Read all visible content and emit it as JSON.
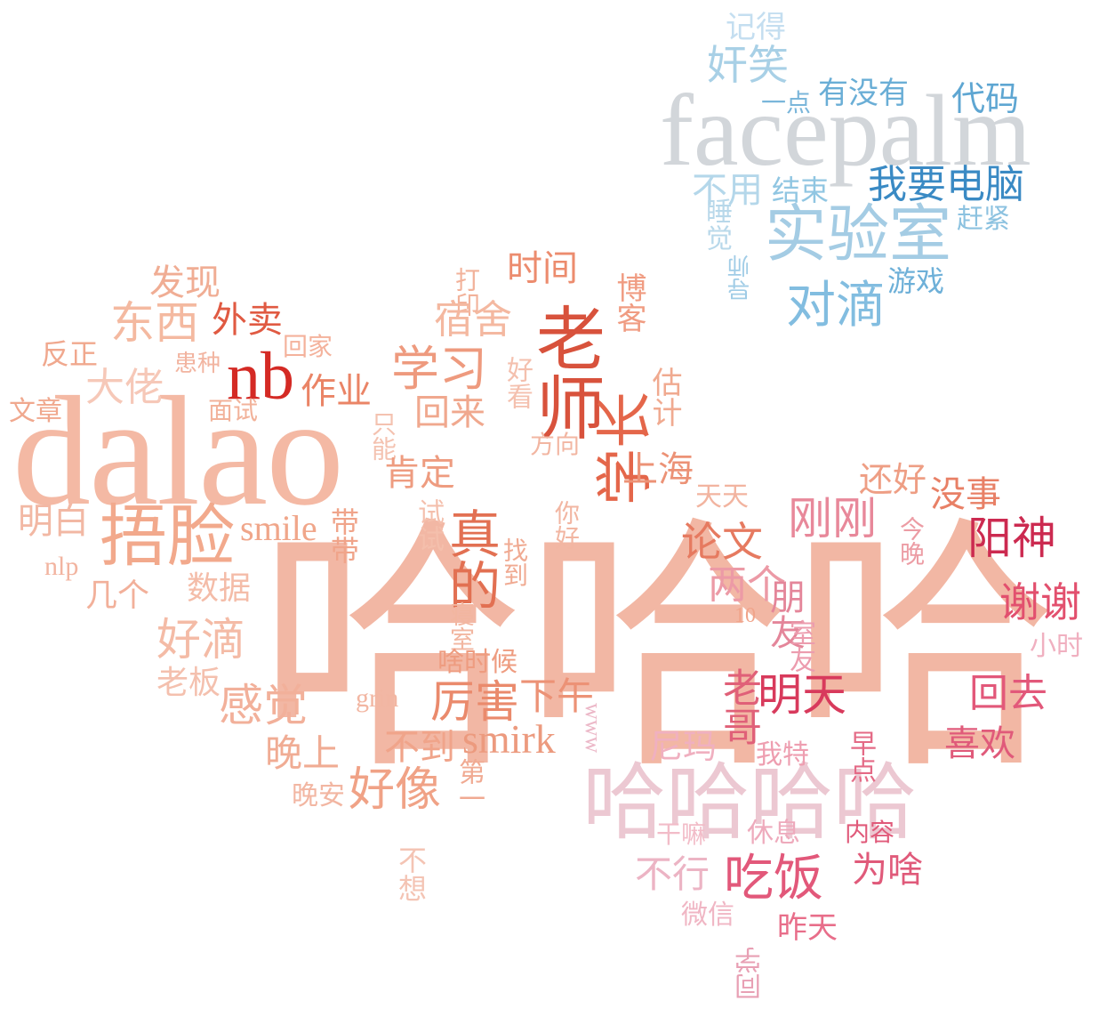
{
  "word_cloud": {
    "words": [
      {
        "text": "哈哈哈",
        "color": "#f2b7a4"
      },
      {
        "text": "dalao",
        "color": "#f4b9a4"
      },
      {
        "text": "facepalm",
        "color": "#d2d6da"
      },
      {
        "text": "哈哈哈哈",
        "color": "#ecc8d2"
      },
      {
        "text": "捂脸",
        "color": "#f2a98c"
      },
      {
        "text": "老师",
        "color": "#d8523c"
      },
      {
        "text": "nb",
        "color": "#d42a24"
      },
      {
        "text": "实验室",
        "color": "#a4cce4"
      },
      {
        "text": "学长",
        "color": "#e4664a"
      },
      {
        "text": "真的",
        "color": "#e27052"
      },
      {
        "text": "学习",
        "color": "#ee9a7e"
      },
      {
        "text": "对滴",
        "color": "#82bde0"
      },
      {
        "text": "奸笑",
        "color": "#a8d0e6"
      },
      {
        "text": "我要电脑",
        "color": "#3a8ac4"
      },
      {
        "text": "不用",
        "color": "#b4d7ea"
      },
      {
        "text": "结束",
        "color": "#90c6e2"
      },
      {
        "text": "有没有",
        "color": "#6aaed6"
      },
      {
        "text": "代码",
        "color": "#5ea6d2"
      },
      {
        "text": "一点",
        "color": "#7ab6da"
      },
      {
        "text": "记得",
        "color": "#c4def0"
      },
      {
        "text": "睡觉",
        "color": "#b8d8ea"
      },
      {
        "text": "赶紧",
        "color": "#8cc2e0"
      },
      {
        "text": "游戏",
        "color": "#6eb0d8"
      },
      {
        "text": "导师",
        "color": "#a0cce6"
      },
      {
        "text": "东西",
        "color": "#f4b9a0"
      },
      {
        "text": "发现",
        "color": "#f0ad94"
      },
      {
        "text": "外卖",
        "color": "#e05a42"
      },
      {
        "text": "时间",
        "color": "#ec8c6e"
      },
      {
        "text": "打印",
        "color": "#f2b29a"
      },
      {
        "text": "博客",
        "color": "#f09c82"
      },
      {
        "text": "宿舍",
        "color": "#f4b8a0"
      },
      {
        "text": "大佬",
        "color": "#f6c8b8"
      },
      {
        "text": "作业",
        "color": "#ea8466"
      },
      {
        "text": "回家",
        "color": "#f4b29c"
      },
      {
        "text": "反正",
        "color": "#f0a88e"
      },
      {
        "text": "患种",
        "color": "#f2b4a0"
      },
      {
        "text": "文章",
        "color": "#f0a88e"
      },
      {
        "text": "面试",
        "color": "#f2b29a"
      },
      {
        "text": "好看",
        "color": "#f4c0ae"
      },
      {
        "text": "只能",
        "color": "#f4c2b0"
      },
      {
        "text": "回来",
        "color": "#f0a88e"
      },
      {
        "text": "估计",
        "color": "#f0aa90"
      },
      {
        "text": "方向",
        "color": "#f2b6a2"
      },
      {
        "text": "肯定",
        "color": "#ee9c80"
      },
      {
        "text": "上海",
        "color": "#ec9276"
      },
      {
        "text": "明白",
        "color": "#f2b8a4"
      },
      {
        "text": "smile",
        "color": "#f0a68a"
      },
      {
        "text": "带带",
        "color": "#f0a48a"
      },
      {
        "text": "nlp",
        "color": "#f2b4a0"
      },
      {
        "text": "试试",
        "color": "#f4bfac"
      },
      {
        "text": "你好",
        "color": "#f2b6a2"
      },
      {
        "text": "找到",
        "color": "#f0aa92"
      },
      {
        "text": "几个",
        "color": "#f2b09a"
      },
      {
        "text": "数据",
        "color": "#f4bca8"
      },
      {
        "text": "好滴",
        "color": "#f4bba6"
      },
      {
        "text": "寝室",
        "color": "#f2b6a0"
      },
      {
        "text": "老板",
        "color": "#f4c0ae"
      },
      {
        "text": "感觉",
        "color": "#f2b09a"
      },
      {
        "text": "啥时候",
        "color": "#ee9c80"
      },
      {
        "text": "grin",
        "color": "#f2b6a2"
      },
      {
        "text": "厉害",
        "color": "#ea8a6c"
      },
      {
        "text": "下午",
        "color": "#ec9276"
      },
      {
        "text": "不到",
        "color": "#f0a48a"
      },
      {
        "text": "smirk",
        "color": "#ec9a7e"
      },
      {
        "text": "晚上",
        "color": "#f0ac94"
      },
      {
        "text": "好像",
        "color": "#f0a286"
      },
      {
        "text": "晚安",
        "color": "#f2b6a2"
      },
      {
        "text": "第一",
        "color": "#f0aa92"
      },
      {
        "text": "不想",
        "color": "#f4c4b4"
      },
      {
        "text": "还好",
        "color": "#ee9e84"
      },
      {
        "text": "天天",
        "color": "#f2b4a0"
      },
      {
        "text": "没事",
        "color": "#e88066"
      },
      {
        "text": "论文",
        "color": "#e67a60"
      },
      {
        "text": "刚刚",
        "color": "#e8889a"
      },
      {
        "text": "阳神",
        "color": "#cc2a50"
      },
      {
        "text": "今晚",
        "color": "#ec9ca4"
      },
      {
        "text": "两个",
        "color": "#ec9aa6"
      },
      {
        "text": "10",
        "color": "#f0a48a"
      },
      {
        "text": "谢谢",
        "color": "#e2506e"
      },
      {
        "text": "朋友",
        "color": "#e4869a"
      },
      {
        "text": "室友",
        "color": "#ec9cae"
      },
      {
        "text": "小时",
        "color": "#f0b0c0"
      },
      {
        "text": "老哥",
        "color": "#e06078"
      },
      {
        "text": "明天",
        "color": "#d83a5c"
      },
      {
        "text": "回去",
        "color": "#e2587a"
      },
      {
        "text": "www",
        "color": "#ecb8c8"
      },
      {
        "text": "尼玛",
        "color": "#f0b0c0"
      },
      {
        "text": "我特",
        "color": "#ee9eb0"
      },
      {
        "text": "早点",
        "color": "#e46a86"
      },
      {
        "text": "喜欢",
        "color": "#e05a7a"
      },
      {
        "text": "干嘛",
        "color": "#f2bcc8"
      },
      {
        "text": "休息",
        "color": "#eeaabc"
      },
      {
        "text": "内容",
        "color": "#e05a7a"
      },
      {
        "text": "不行",
        "color": "#ecb4c4"
      },
      {
        "text": "吃饭",
        "color": "#e2587a"
      },
      {
        "text": "为啥",
        "color": "#e05a7a"
      },
      {
        "text": "微信",
        "color": "#f0b6c4"
      },
      {
        "text": "昨天",
        "color": "#e86e8a"
      },
      {
        "text": "同学",
        "color": "#e8a0b4"
      }
    ]
  }
}
